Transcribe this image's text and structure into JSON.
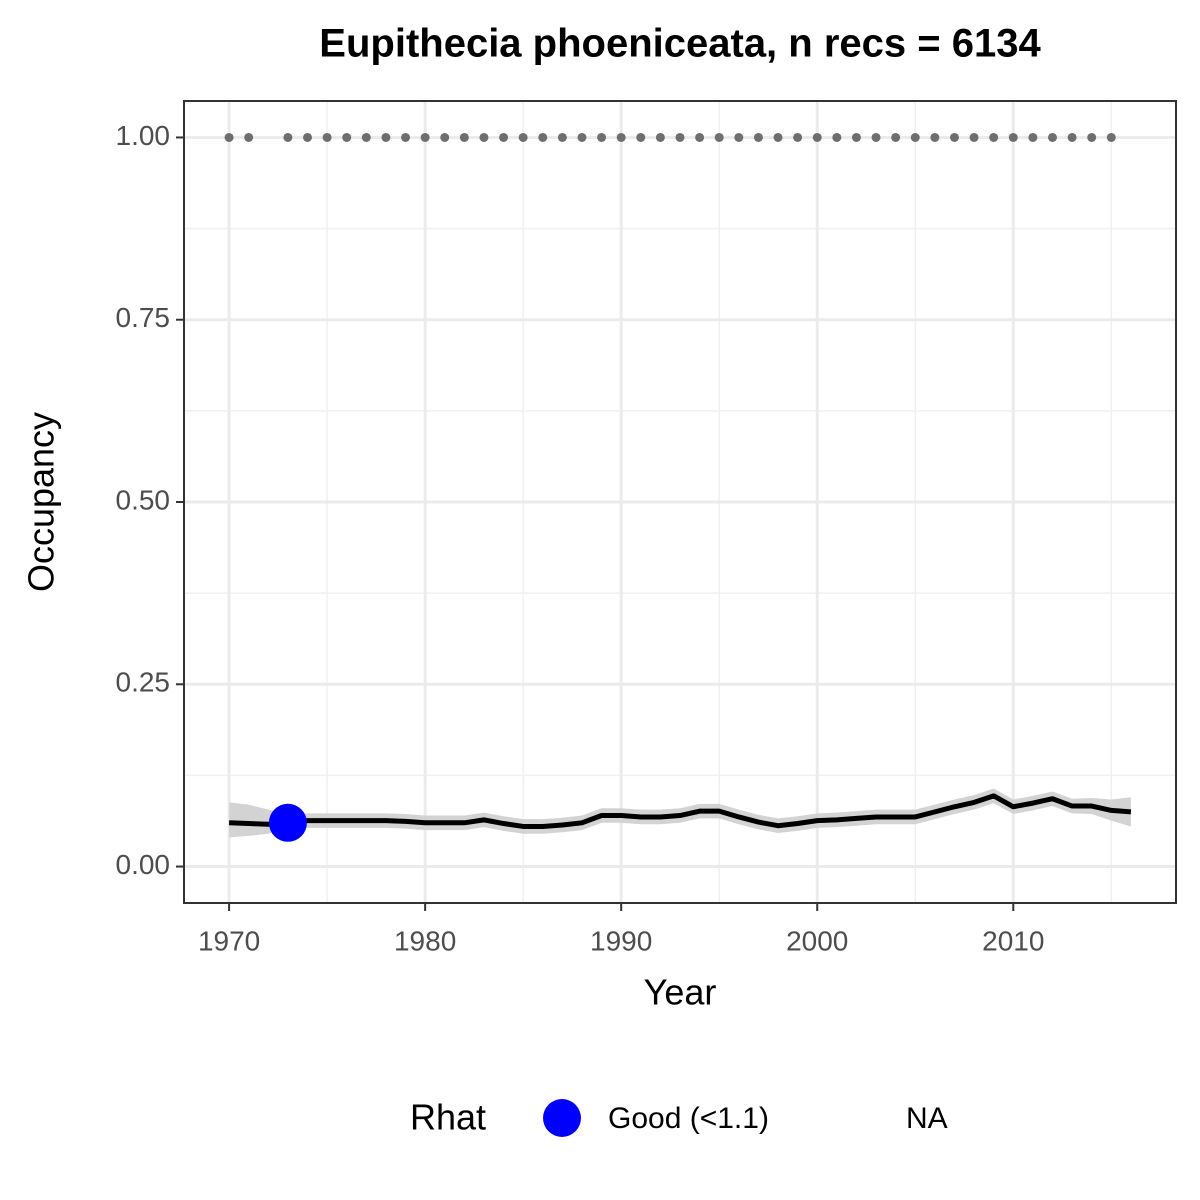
{
  "chart_data": {
    "type": "line",
    "title": "Eupithecia phoeniceata, n recs = 6134",
    "x_label": "Year",
    "y_label": "Occupancy",
    "xlim": [
      1967.7,
      2018.3
    ],
    "ylim": [
      -0.05,
      1.05
    ],
    "xticks": [
      1970,
      1980,
      1990,
      2000,
      2010
    ],
    "yticks": [
      {
        "value": 0,
        "label": "0.00"
      },
      {
        "value": 0.25,
        "label": "0.25"
      },
      {
        "value": 0.5,
        "label": "0.50"
      },
      {
        "value": 0.75,
        "label": "0.75"
      },
      {
        "value": 1,
        "label": "1.00"
      }
    ],
    "x_minor_grid": [
      1975,
      1985,
      1995,
      2005,
      2015
    ],
    "y_minor_grid": [
      0.125,
      0.375,
      0.625,
      0.875
    ],
    "grid": true,
    "trend": {
      "color": "#000000",
      "band_color": "#d3d3d3",
      "x": [
        1970,
        1971,
        1972,
        1973,
        1974,
        1975,
        1976,
        1977,
        1978,
        1979,
        1980,
        1981,
        1982,
        1983,
        1984,
        1985,
        1986,
        1987,
        1988,
        1989,
        1990,
        1991,
        1992,
        1993,
        1994,
        1995,
        1996,
        1997,
        1998,
        1999,
        2000,
        2001,
        2002,
        2003,
        2004,
        2005,
        2006,
        2007,
        2008,
        2009,
        2010,
        2011,
        2012,
        2013,
        2014,
        2015,
        2016
      ],
      "values": [
        0.06,
        0.059,
        0.058,
        0.062,
        0.063,
        0.063,
        0.063,
        0.063,
        0.063,
        0.062,
        0.06,
        0.06,
        0.06,
        0.064,
        0.059,
        0.055,
        0.055,
        0.057,
        0.06,
        0.07,
        0.07,
        0.068,
        0.068,
        0.07,
        0.076,
        0.076,
        0.068,
        0.061,
        0.056,
        0.059,
        0.063,
        0.064,
        0.066,
        0.068,
        0.068,
        0.068,
        0.075,
        0.082,
        0.088,
        0.097,
        0.082,
        0.087,
        0.093,
        0.083,
        0.083,
        0.077,
        0.075
      ],
      "lower": [
        0.04,
        0.042,
        0.045,
        0.052,
        0.053,
        0.053,
        0.053,
        0.053,
        0.053,
        0.052,
        0.05,
        0.05,
        0.05,
        0.054,
        0.049,
        0.045,
        0.045,
        0.047,
        0.05,
        0.06,
        0.06,
        0.058,
        0.058,
        0.06,
        0.066,
        0.066,
        0.058,
        0.051,
        0.046,
        0.049,
        0.053,
        0.054,
        0.056,
        0.058,
        0.058,
        0.058,
        0.065,
        0.072,
        0.078,
        0.087,
        0.072,
        0.077,
        0.083,
        0.073,
        0.072,
        0.063,
        0.055
      ],
      "upper": [
        0.088,
        0.085,
        0.078,
        0.072,
        0.073,
        0.073,
        0.073,
        0.073,
        0.073,
        0.072,
        0.07,
        0.07,
        0.07,
        0.074,
        0.069,
        0.065,
        0.065,
        0.067,
        0.07,
        0.08,
        0.08,
        0.078,
        0.078,
        0.08,
        0.086,
        0.086,
        0.078,
        0.071,
        0.066,
        0.069,
        0.073,
        0.074,
        0.076,
        0.078,
        0.078,
        0.078,
        0.085,
        0.092,
        0.098,
        0.107,
        0.092,
        0.097,
        0.103,
        0.093,
        0.094,
        0.092,
        0.095
      ]
    },
    "records": {
      "color": "#6e6e6e",
      "x": [
        1970,
        1971,
        1973,
        1974,
        1975,
        1976,
        1977,
        1978,
        1979,
        1980,
        1981,
        1982,
        1983,
        1984,
        1985,
        1986,
        1987,
        1988,
        1989,
        1990,
        1991,
        1992,
        1993,
        1994,
        1995,
        1996,
        1997,
        1998,
        1999,
        2000,
        2001,
        2002,
        2003,
        2004,
        2005,
        2006,
        2007,
        2008,
        2009,
        2010,
        2011,
        2012,
        2013,
        2014,
        2015
      ],
      "values": [
        1,
        1,
        1,
        1,
        1,
        1,
        1,
        1,
        1,
        1,
        1,
        1,
        1,
        1,
        1,
        1,
        1,
        1,
        1,
        1,
        1,
        1,
        1,
        1,
        1,
        1,
        1,
        1,
        1,
        1,
        1,
        1,
        1,
        1,
        1,
        1,
        1,
        1,
        1,
        1,
        1,
        1,
        1,
        1,
        1
      ]
    },
    "legend_title": "Rhat",
    "series": [
      {
        "name": "Good (<1.1)",
        "color": "#0000ff",
        "x": [
          1973
        ],
        "values": [
          0.06
        ]
      },
      {
        "name": "NA",
        "x": [],
        "values": []
      }
    ]
  }
}
